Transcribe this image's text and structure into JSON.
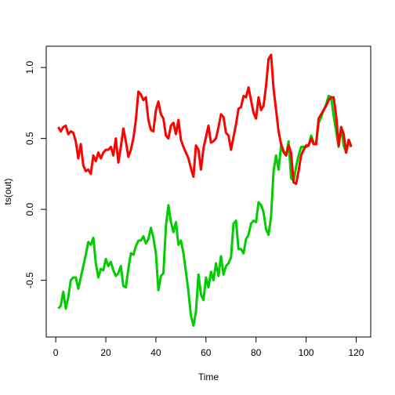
{
  "chart_data": {
    "type": "line",
    "title": "",
    "xlabel": "Time",
    "ylabel": "ts(out)",
    "xlim": [
      1,
      121
    ],
    "ylim": [
      -0.9,
      1.15
    ],
    "x_ticks": [
      0,
      20,
      40,
      60,
      80,
      100,
      120
    ],
    "y_ticks": [
      -0.5,
      0.0,
      0.5,
      1.0
    ],
    "x_tick_labels": [
      "0",
      "20",
      "40",
      "60",
      "80",
      "100",
      "120"
    ],
    "y_tick_labels": [
      "-0.5",
      "0.0",
      "0.5",
      "1.0"
    ],
    "grid": false,
    "legend": "none",
    "x_start": 1,
    "series": [
      {
        "color": "#00cd00",
        "values": [
          -0.7,
          -0.68,
          -0.58,
          -0.7,
          -0.62,
          -0.5,
          -0.48,
          -0.48,
          -0.56,
          -0.48,
          -0.4,
          -0.32,
          -0.23,
          -0.25,
          -0.2,
          -0.38,
          -0.48,
          -0.42,
          -0.43,
          -0.35,
          -0.4,
          -0.37,
          -0.43,
          -0.47,
          -0.45,
          -0.4,
          -0.54,
          -0.55,
          -0.42,
          -0.31,
          -0.32,
          -0.26,
          -0.22,
          -0.22,
          -0.19,
          -0.24,
          -0.21,
          -0.13,
          -0.2,
          -0.31,
          -0.57,
          -0.47,
          -0.45,
          -0.12,
          0.03,
          -0.09,
          -0.16,
          -0.09,
          -0.25,
          -0.22,
          -0.31,
          -0.44,
          -0.58,
          -0.75,
          -0.82,
          -0.72,
          -0.46,
          -0.6,
          -0.64,
          -0.48,
          -0.55,
          -0.44,
          -0.5,
          -0.38,
          -0.47,
          -0.33,
          -0.46,
          -0.4,
          -0.38,
          -0.34,
          -0.1,
          -0.08,
          -0.28,
          -0.28,
          -0.31,
          -0.21,
          -0.18,
          -0.1,
          -0.08,
          -0.09,
          0.05,
          0.03,
          -0.02,
          -0.14,
          -0.18,
          -0.05,
          0.27,
          0.38,
          0.28,
          0.45,
          0.4,
          0.38,
          0.48,
          0.22,
          0.2,
          0.3,
          0.38,
          0.44,
          0.44,
          0.44,
          0.45,
          0.52,
          0.47,
          0.46,
          0.61,
          0.65,
          0.7,
          0.74,
          0.8,
          0.79,
          0.66,
          0.55,
          0.44,
          0.58,
          0.45,
          0.4,
          0.49,
          0.45
        ]
      },
      {
        "color": "#ff0000",
        "values": [
          0.58,
          0.55,
          0.58,
          0.59,
          0.53,
          0.55,
          0.54,
          0.48,
          0.36,
          0.46,
          0.31,
          0.27,
          0.28,
          0.25,
          0.38,
          0.34,
          0.4,
          0.36,
          0.4,
          0.42,
          0.42,
          0.44,
          0.38,
          0.5,
          0.33,
          0.44,
          0.57,
          0.48,
          0.37,
          0.42,
          0.5,
          0.63,
          0.83,
          0.81,
          0.77,
          0.79,
          0.63,
          0.56,
          0.55,
          0.7,
          0.76,
          0.67,
          0.64,
          0.52,
          0.5,
          0.59,
          0.61,
          0.53,
          0.63,
          0.49,
          0.44,
          0.4,
          0.36,
          0.29,
          0.23,
          0.45,
          0.42,
          0.28,
          0.43,
          0.51,
          0.59,
          0.47,
          0.48,
          0.5,
          0.58,
          0.67,
          0.65,
          0.54,
          0.52,
          0.42,
          0.51,
          0.6,
          0.71,
          0.72,
          0.8,
          0.79,
          0.86,
          0.77,
          0.68,
          0.64,
          0.79,
          0.7,
          0.73,
          0.87,
          1.06,
          1.09,
          0.85,
          0.7,
          0.55,
          0.46,
          0.41,
          0.38,
          0.45,
          0.4,
          0.19,
          0.18,
          0.27,
          0.38,
          0.42,
          0.45,
          0.45,
          0.5,
          0.46,
          0.46,
          0.64,
          0.67,
          0.7,
          0.73,
          0.77,
          0.79,
          0.79,
          0.66,
          0.45,
          0.58,
          0.53,
          0.4,
          0.49,
          0.44
        ]
      }
    ]
  }
}
